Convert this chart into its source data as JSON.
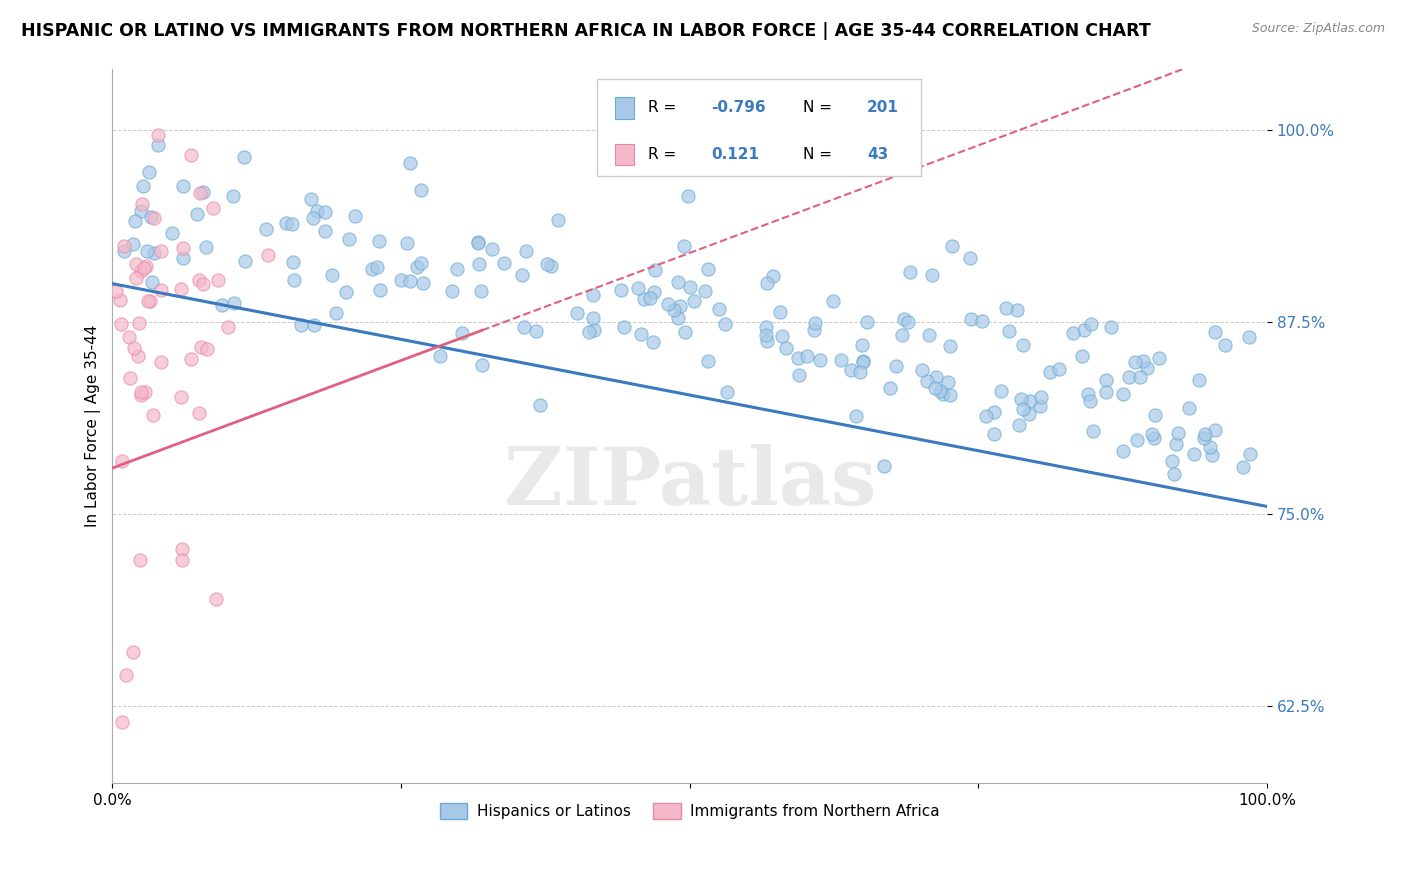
{
  "title": "HISPANIC OR LATINO VS IMMIGRANTS FROM NORTHERN AFRICA IN LABOR FORCE | AGE 35-44 CORRELATION CHART",
  "source": "Source: ZipAtlas.com",
  "ylabel": "In Labor Force | Age 35-44",
  "xlim": [
    0.0,
    1.0
  ],
  "ylim": [
    0.575,
    1.04
  ],
  "yticks": [
    0.625,
    0.75,
    0.875,
    1.0
  ],
  "ytick_labels": [
    "62.5%",
    "75.0%",
    "87.5%",
    "100.0%"
  ],
  "xticks": [
    0.0,
    0.25,
    0.5,
    0.75,
    1.0
  ],
  "xtick_labels": [
    "0.0%",
    "",
    "",
    "",
    "100.0%"
  ],
  "blue_R": -0.796,
  "blue_N": 201,
  "pink_R": 0.121,
  "pink_N": 43,
  "blue_color": "#a8c8e8",
  "pink_color": "#f4b8c8",
  "blue_edge": "#6aaad4",
  "pink_edge": "#e888a8",
  "watermark_color": "#d8d8d8",
  "legend_label_blue": "Hispanics or Latinos",
  "legend_label_pink": "Immigrants from Northern Africa",
  "blue_line_color": "#3a7abf",
  "pink_line_color": "#e06080",
  "grid_color": "#cccccc",
  "background_color": "#ffffff",
  "title_fontsize": 12.5,
  "axis_fontsize": 11,
  "tick_fontsize": 11,
  "blue_intercept": 0.9,
  "blue_slope": -0.145,
  "pink_intercept": 0.78,
  "pink_slope": 0.28
}
